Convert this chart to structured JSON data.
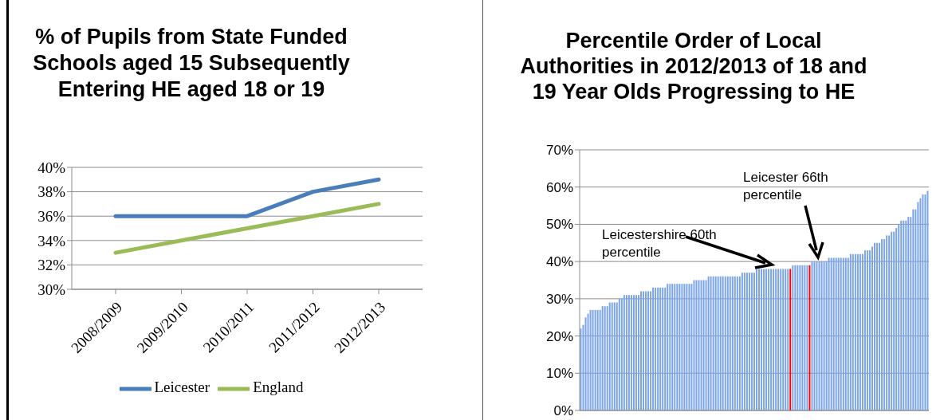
{
  "chart_data": [
    {
      "type": "line",
      "title": "% of Pupils from State Funded Schools aged 15 Subsequently Entering HE aged 18 or 19",
      "categories": [
        "2008/2009",
        "2009/2010",
        "2010/2011",
        "2011/2012",
        "2012/2013"
      ],
      "series": [
        {
          "name": "Leicester",
          "color": "#4a7ebb",
          "values": [
            36,
            36,
            36,
            38,
            39
          ]
        },
        {
          "name": "England",
          "color": "#9bbb59",
          "values": [
            33,
            34,
            35,
            36,
            37
          ]
        }
      ],
      "ylim": [
        30,
        40
      ],
      "yticks": [
        {
          "value": 30,
          "label": "30%"
        },
        {
          "value": 32,
          "label": "32%"
        },
        {
          "value": 34,
          "label": "34%"
        },
        {
          "value": 36,
          "label": "36%"
        },
        {
          "value": 38,
          "label": "38%"
        },
        {
          "value": 40,
          "label": "40%"
        }
      ],
      "grid": "y",
      "legend": "bottom",
      "marker": "none"
    },
    {
      "type": "bar",
      "title": "Percentile Order of Local Authorities in 2012/2013 of 18 and 19 Year Olds Progressing to HE",
      "categories": [
        null,
        null,
        null,
        null,
        null,
        null,
        null,
        null,
        null,
        null,
        null,
        null,
        null,
        null,
        null,
        null,
        null,
        null,
        null,
        null,
        null,
        null,
        null,
        null,
        null,
        null,
        null,
        null,
        null,
        null,
        null,
        null,
        null,
        null,
        null,
        null,
        null,
        null,
        null,
        null,
        null,
        null,
        null,
        null,
        null,
        null,
        null,
        null,
        null,
        null,
        null,
        null,
        null,
        null,
        null,
        null,
        null,
        null,
        null,
        null,
        null,
        null,
        null,
        null,
        null,
        null,
        null,
        null,
        null,
        null,
        null,
        null,
        null,
        null,
        null,
        null,
        null,
        null,
        null,
        null,
        null,
        null,
        null,
        null,
        null,
        null,
        null,
        null,
        null,
        null,
        null,
        null,
        null,
        null,
        null,
        null,
        null,
        null,
        null,
        null,
        null,
        null,
        null,
        null,
        null,
        null,
        null,
        null,
        null,
        null,
        null,
        null,
        null,
        null,
        null,
        null,
        null,
        null,
        null,
        null,
        null,
        null,
        null,
        null,
        null,
        null,
        null,
        null,
        null,
        null,
        null,
        null,
        null,
        null,
        null,
        null,
        null,
        null,
        null,
        null,
        null,
        null,
        null,
        null,
        null
      ],
      "values": [
        22,
        23,
        25,
        26,
        27,
        27,
        27,
        27,
        27,
        28,
        28,
        28,
        29,
        29,
        29,
        29,
        30,
        30,
        31,
        31,
        31,
        31,
        31,
        31,
        31,
        32,
        32,
        32,
        32,
        32,
        33,
        33,
        33,
        33,
        33,
        33,
        34,
        34,
        34,
        34,
        34,
        34,
        34,
        34,
        34,
        34,
        34,
        35,
        35,
        35,
        35,
        35,
        35,
        36,
        36,
        36,
        36,
        36,
        36,
        36,
        36,
        36,
        36,
        36,
        36,
        36,
        36,
        37,
        37,
        37,
        37,
        37,
        37,
        38,
        38,
        38,
        38,
        38,
        38,
        38,
        38,
        38,
        38,
        38,
        38,
        38,
        38,
        38,
        39,
        39,
        39,
        39,
        39,
        39,
        39,
        39,
        40,
        40,
        40,
        40,
        40,
        40,
        40,
        41,
        41,
        41,
        41,
        41,
        41,
        41,
        41,
        41,
        42,
        42,
        42,
        42,
        42,
        42,
        43,
        43,
        43,
        44,
        45,
        45,
        45,
        46,
        46,
        47,
        47,
        48,
        48,
        49,
        50,
        51,
        51,
        51,
        52,
        52,
        54,
        54,
        56,
        57,
        58,
        58,
        59
      ],
      "colors": [
        "#7ba5e8",
        "#7ba5e8",
        "#7ba5e8",
        "#7ba5e8",
        "#7ba5e8",
        "#7ba5e8",
        "#7ba5e8",
        "#7ba5e8",
        "#7ba5e8",
        "#7ba5e8",
        "#7ba5e8",
        "#7ba5e8",
        "#7ba5e8",
        "#7ba5e8",
        "#7ba5e8",
        "#7ba5e8",
        "#7ba5e8",
        "#7ba5e8",
        "#7ba5e8",
        "#7ba5e8",
        "#7ba5e8",
        "#7ba5e8",
        "#7ba5e8",
        "#7ba5e8",
        "#7ba5e8",
        "#7ba5e8",
        "#7ba5e8",
        "#7ba5e8",
        "#7ba5e8",
        "#7ba5e8",
        "#7ba5e8",
        "#7ba5e8",
        "#7ba5e8",
        "#7ba5e8",
        "#7ba5e8",
        "#7ba5e8",
        "#7ba5e8",
        "#7ba5e8",
        "#7ba5e8",
        "#7ba5e8",
        "#7ba5e8",
        "#7ba5e8",
        "#7ba5e8",
        "#7ba5e8",
        "#7ba5e8",
        "#7ba5e8",
        "#7ba5e8",
        "#7ba5e8",
        "#7ba5e8",
        "#7ba5e8",
        "#7ba5e8",
        "#7ba5e8",
        "#7ba5e8",
        "#7ba5e8",
        "#7ba5e8",
        "#7ba5e8",
        "#7ba5e8",
        "#7ba5e8",
        "#7ba5e8",
        "#7ba5e8",
        "#7ba5e8",
        "#7ba5e8",
        "#7ba5e8",
        "#7ba5e8",
        "#7ba5e8",
        "#7ba5e8",
        "#7ba5e8",
        "#7ba5e8",
        "#7ba5e8",
        "#7ba5e8",
        "#7ba5e8",
        "#7ba5e8",
        "#7ba5e8",
        "#7ba5e8",
        "#7ba5e8",
        "#7ba5e8",
        "#7ba5e8",
        "#7ba5e8",
        "#7ba5e8",
        "#7ba5e8",
        "#7ba5e8",
        "#7ba5e8",
        "#7ba5e8",
        "#7ba5e8",
        "#7ba5e8",
        "#7ba5e8",
        "#7ba5e8",
        "#ff0000",
        "#7ba5e8",
        "#7ba5e8",
        "#7ba5e8",
        "#7ba5e8",
        "#7ba5e8",
        "#7ba5e8",
        "#7ba5e8",
        "#ff0000",
        "#7ba5e8",
        "#7ba5e8",
        "#7ba5e8",
        "#7ba5e8",
        "#7ba5e8",
        "#7ba5e8",
        "#7ba5e8",
        "#7ba5e8",
        "#7ba5e8",
        "#7ba5e8",
        "#7ba5e8",
        "#7ba5e8",
        "#7ba5e8",
        "#7ba5e8",
        "#7ba5e8",
        "#7ba5e8",
        "#7ba5e8",
        "#7ba5e8",
        "#7ba5e8",
        "#7ba5e8",
        "#7ba5e8",
        "#7ba5e8",
        "#7ba5e8",
        "#7ba5e8",
        "#7ba5e8",
        "#7ba5e8",
        "#7ba5e8",
        "#7ba5e8",
        "#7ba5e8",
        "#7ba5e8",
        "#7ba5e8",
        "#7ba5e8",
        "#7ba5e8",
        "#7ba5e8",
        "#7ba5e8",
        "#7ba5e8",
        "#7ba5e8",
        "#7ba5e8",
        "#7ba5e8",
        "#7ba5e8",
        "#7ba5e8",
        "#7ba5e8",
        "#7ba5e8",
        "#7ba5e8",
        "#7ba5e8",
        "#7ba5e8",
        "#7ba5e8",
        "#7ba5e8",
        "#7ba5e8"
      ],
      "ylim": [
        0,
        70
      ],
      "yticks": [
        {
          "value": 0,
          "label": "0%"
        },
        {
          "value": 10,
          "label": "10%"
        },
        {
          "value": 20,
          "label": "20%"
        },
        {
          "value": 30,
          "label": "30%"
        },
        {
          "value": 40,
          "label": "40%"
        },
        {
          "value": 50,
          "label": "50%"
        },
        {
          "value": 60,
          "label": "60%"
        },
        {
          "value": 70,
          "label": "70%"
        }
      ],
      "grid": "y",
      "tick_labels": "y",
      "annotations": [
        "Leicester 66th percentile",
        "Leicestershire 60th percentile"
      ]
    }
  ]
}
